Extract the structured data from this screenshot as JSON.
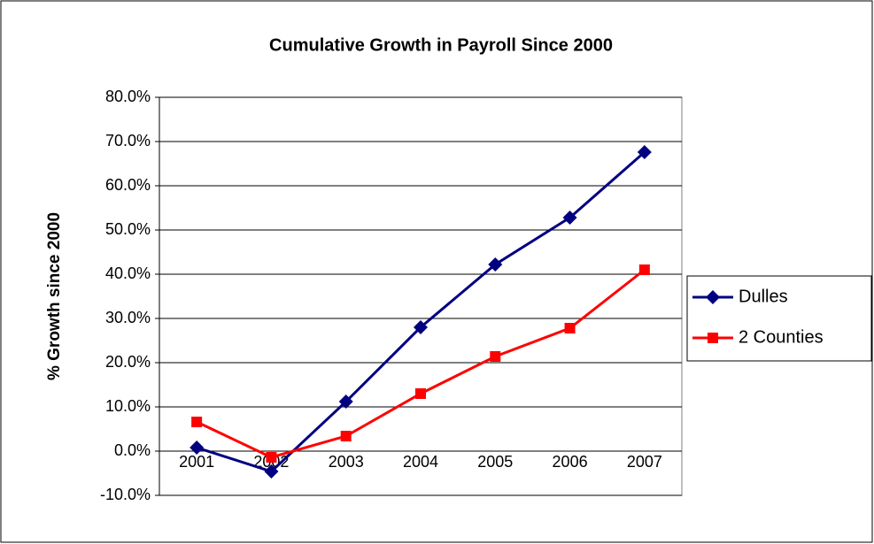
{
  "chart_data": {
    "type": "line",
    "title": "Cumulative Growth in Payroll Since 2000",
    "y_label": "% Growth since 2000",
    "categories": [
      "2001",
      "2002",
      "2003",
      "2004",
      "2005",
      "2006",
      "2007"
    ],
    "series": [
      {
        "name": "Dulles",
        "color": "#000080",
        "marker": "diamond",
        "values": [
          0.8,
          -4.6,
          11.2,
          28.0,
          42.2,
          52.8,
          67.6
        ]
      },
      {
        "name": "2 Counties",
        "color": "#ff0000",
        "marker": "square",
        "values": [
          6.6,
          -1.4,
          3.4,
          13.0,
          21.4,
          27.8,
          41.0
        ]
      }
    ],
    "ylim": [
      -10,
      80
    ],
    "yticks": [
      {
        "value": -10,
        "label": "-10.0%"
      },
      {
        "value": 0,
        "label": "0.0%"
      },
      {
        "value": 10,
        "label": "10.0%"
      },
      {
        "value": 20,
        "label": "20.0%"
      },
      {
        "value": 30,
        "label": "30.0%"
      },
      {
        "value": 40,
        "label": "40.0%"
      },
      {
        "value": 50,
        "label": "50.0%"
      },
      {
        "value": 60,
        "label": "60.0%"
      },
      {
        "value": 70,
        "label": "70.0%"
      },
      {
        "value": 80,
        "label": "80.0%"
      }
    ],
    "grid": true,
    "legend": "right"
  }
}
